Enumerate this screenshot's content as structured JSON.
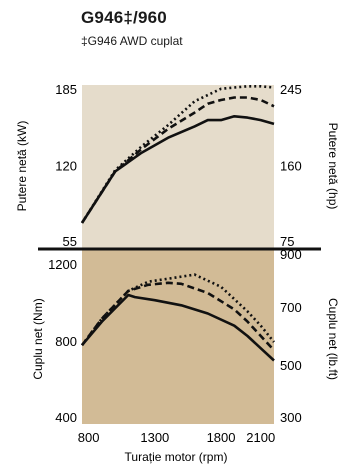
{
  "header": {
    "title": "G946‡/960",
    "subtitle": "‡G946 AWD cuplat"
  },
  "colors": {
    "power_panel_bg": "#e5dccb",
    "torque_panel_bg": "#d2bb96",
    "line": "#111111",
    "divider": "#111111"
  },
  "chart_data": [
    {
      "type": "line",
      "panel": "power",
      "xlabel": "",
      "ylabel": "Putere netă (kW)",
      "ylabel_right": "Putere netă (hp)",
      "xlim": [
        750,
        2200
      ],
      "ylim": [
        55,
        185
      ],
      "ylim_right": [
        75,
        245
      ],
      "yticks": [
        55,
        120,
        185
      ],
      "yticks_right": [
        75,
        160,
        245
      ],
      "grid": false,
      "series": [
        {
          "style": "solid",
          "x": [
            750,
            1000,
            1200,
            1400,
            1600,
            1700,
            1800,
            1900,
            2000,
            2100,
            2200
          ],
          "y": [
            75,
            116,
            131,
            143,
            152,
            157,
            157,
            160,
            159,
            157,
            154
          ]
        },
        {
          "style": "dashed",
          "x": [
            750,
            1000,
            1200,
            1400,
            1600,
            1700,
            1800,
            1900,
            2000,
            2100,
            2200
          ],
          "y": [
            75,
            116,
            134,
            150,
            163,
            170,
            173,
            175,
            175,
            173,
            168
          ]
        },
        {
          "style": "dotted",
          "x": [
            750,
            1000,
            1200,
            1400,
            1600,
            1700,
            1800,
            1900,
            2000,
            2100,
            2200
          ],
          "y": [
            75,
            117,
            136,
            153,
            172,
            177,
            182,
            183,
            184,
            184,
            183
          ]
        }
      ]
    },
    {
      "type": "line",
      "panel": "torque",
      "xlabel": "Turație motor (rpm)",
      "ylabel": "Cuplu net (Nm)",
      "ylabel_right": "Cuplu net (lb.ft)",
      "xlim": [
        750,
        2200
      ],
      "ylim": [
        400,
        1250
      ],
      "ylim_right": [
        300,
        900
      ],
      "xticks": [
        800,
        1300,
        1800,
        2100
      ],
      "yticks": [
        400,
        800,
        1200
      ],
      "yticks_right": [
        300,
        500,
        700,
        900
      ],
      "grid": false,
      "series": [
        {
          "style": "solid",
          "x": [
            750,
            900,
            1100,
            1150,
            1300,
            1500,
            1700,
            1900,
            2000,
            2100,
            2200
          ],
          "y": [
            785,
            900,
            1030,
            1020,
            1005,
            980,
            940,
            880,
            830,
            770,
            710
          ]
        },
        {
          "style": "dashed",
          "x": [
            750,
            900,
            1100,
            1250,
            1400,
            1500,
            1700,
            1900,
            2000,
            2100,
            2200
          ],
          "y": [
            785,
            915,
            1050,
            1080,
            1090,
            1085,
            1040,
            960,
            900,
            830,
            760
          ]
        },
        {
          "style": "dotted",
          "x": [
            750,
            900,
            1100,
            1250,
            1400,
            1600,
            1800,
            1900,
            2000,
            2100,
            2200
          ],
          "y": [
            785,
            915,
            1050,
            1095,
            1110,
            1130,
            1070,
            1010,
            950,
            880,
            800
          ]
        }
      ]
    }
  ]
}
